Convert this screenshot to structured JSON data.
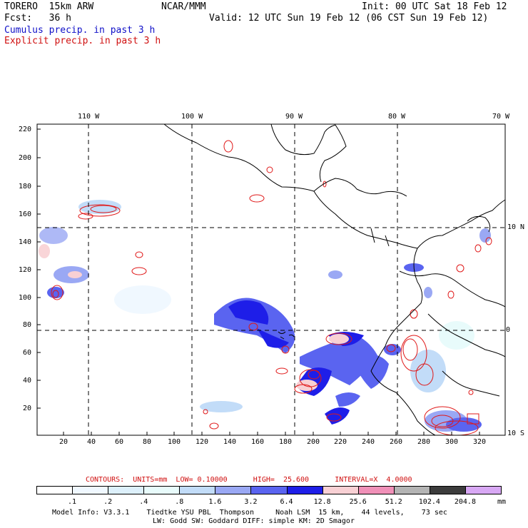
{
  "header": {
    "model": "TORERO  15km ARW",
    "org": "NCAR/MMM",
    "init": "Init: 00 UTC Sat 18 Feb 12",
    "fcst": "Fcst:   36 h",
    "valid": "Valid: 12 UTC Sun 19 Feb 12 (06 CST Sun 19 Feb 12)",
    "field1": "Cumulus precip. in past 3 h",
    "field2": "Explicit precip. in past 3 h"
  },
  "map": {
    "top_lon_labels": [
      "110 W",
      "100 W",
      "90 W",
      "80 W",
      "70 W"
    ],
    "right_lat_labels": [
      "10 N",
      "0",
      "10 S"
    ],
    "left_y_ticks": [
      "220",
      "200",
      "180",
      "160",
      "140",
      "120",
      "100",
      "80",
      "60",
      "40",
      "20"
    ],
    "bottom_x_ticks": [
      "20",
      "40",
      "60",
      "80",
      "100",
      "120",
      "140",
      "160",
      "180",
      "200",
      "220",
      "240",
      "260",
      "280",
      "300",
      "320"
    ],
    "colors": {
      "cumulus": "#3a3aef",
      "explicit": "#e01818",
      "coast": "#000000"
    }
  },
  "contours": {
    "label": "CONTOURS:  UNITS=mm  LOW= 0.10000      HIGH=  25.600      INTERVAL=X  4.0000"
  },
  "colorbar": {
    "colors": [
      "#ffffff",
      "#f0f8ff",
      "#ddf0fb",
      "#e8fbfb",
      "#c2dcf8",
      "#9aa8f4",
      "#5a64f0",
      "#1e1ee8",
      "#f8d0d4",
      "#f090b8",
      "#b4b4b4",
      "#3c3c3c",
      "#d8a8f4"
    ],
    "labels": [
      ".1",
      ".2",
      ".4",
      ".8",
      "1.6",
      "3.2",
      "6.4",
      "12.8",
      "25.6",
      "51.2",
      "102.4",
      "204.8"
    ],
    "unit": "mm"
  },
  "footer": {
    "line1": "Model Info: V3.3.1    Tiedtke YSU PBL  Thompson     Noah LSM  15 km,    44 levels,    73 sec",
    "line2": "LW: Godd SW: Goddard DIFF: simple KM: 2D Smagor"
  }
}
